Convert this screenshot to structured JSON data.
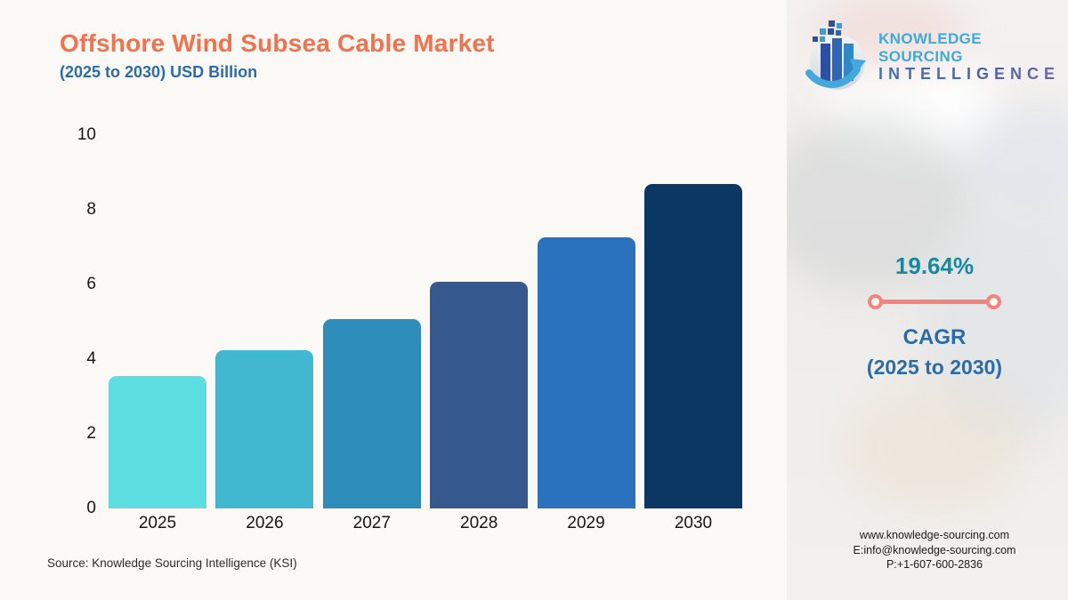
{
  "chart_data": {
    "type": "bar",
    "title": "Offshore Wind Subsea Cable Market",
    "subtitle": "(2025 to 2030) USD Billion",
    "unit": "USD Billion",
    "categories": [
      "2025",
      "2026",
      "2027",
      "2028",
      "2029",
      "2030"
    ],
    "values": [
      3.55,
      4.24,
      5.08,
      6.07,
      7.26,
      8.69
    ],
    "bar_colors": [
      "#5cdee0",
      "#41b8cf",
      "#2e8cba",
      "#35598f",
      "#2a72bd",
      "#0a3763"
    ],
    "xlabel": "",
    "ylabel": "",
    "ylim": [
      0,
      10
    ],
    "yticks": [
      0,
      2,
      4,
      6,
      8,
      10
    ],
    "grid": false,
    "legend": false
  },
  "header": {
    "title_color": "#f4714c",
    "subtitle_color": "#2b6ca8"
  },
  "logo": {
    "line1": "KNOWLEDGE SOURCING",
    "line2": "INTELLIGENCE",
    "icon": "globe-bars-arrow-icon"
  },
  "cagr": {
    "value": "19.64%",
    "label": "CAGR",
    "period": "(2025 to 2030)",
    "value_color": "#17899e",
    "accent_color": "#f4837e",
    "label_color": "#2b6ca8"
  },
  "source_note": "Source: Knowledge Sourcing Intelligence (KSI)",
  "contact": {
    "website": "www.knowledge-sourcing.com",
    "email": "E:info@knowledge-sourcing.com",
    "phone": "P:+1-607-600-2836"
  },
  "colors": {
    "background": "#fbf9f6",
    "axis_text": "#161616"
  }
}
